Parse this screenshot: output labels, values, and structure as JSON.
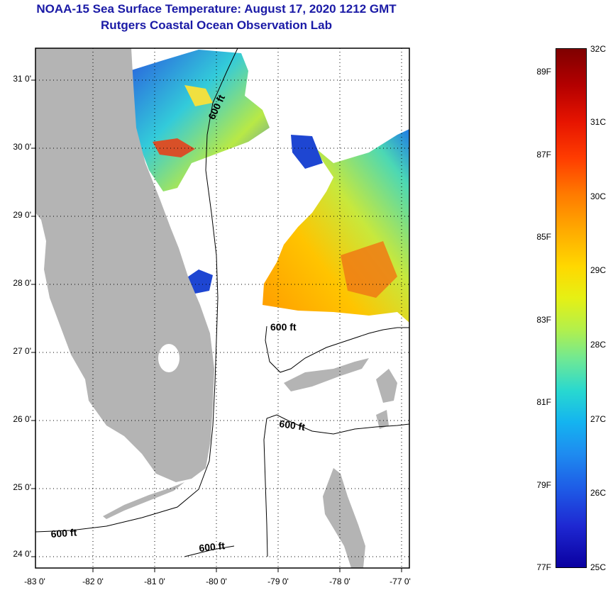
{
  "title": {
    "line1": "NOAA-15 Sea Surface Temperature:  August 17, 2020 1212 GMT",
    "line2": "Rutgers Coastal Ocean Observation Lab"
  },
  "map": {
    "lat_labels": [
      "31 0'",
      "30 0'",
      "29 0'",
      "28 0'",
      "27 0'",
      "26 0'",
      "25 0'",
      "24 0'"
    ],
    "lon_labels": [
      "-83 0'",
      "-82 0'",
      "-81 0'",
      "-80 0'",
      "-79 0'",
      "-78 0'",
      "-77 0'"
    ],
    "contour_labels": [
      "600 ft",
      "600 ft",
      "600 ft",
      "600 ft",
      "600 ft"
    ],
    "colors": {
      "land": "#b4b4b4",
      "frame": "#000000",
      "title": "#1a1aa6"
    }
  },
  "colorbar": {
    "fahrenheit_labels": [
      "89F",
      "87F",
      "85F",
      "83F",
      "81F",
      "79F",
      "77F"
    ],
    "celsius_labels": [
      "32C",
      "31C",
      "30C",
      "29C",
      "28C",
      "27C",
      "26C",
      "25C"
    ]
  }
}
